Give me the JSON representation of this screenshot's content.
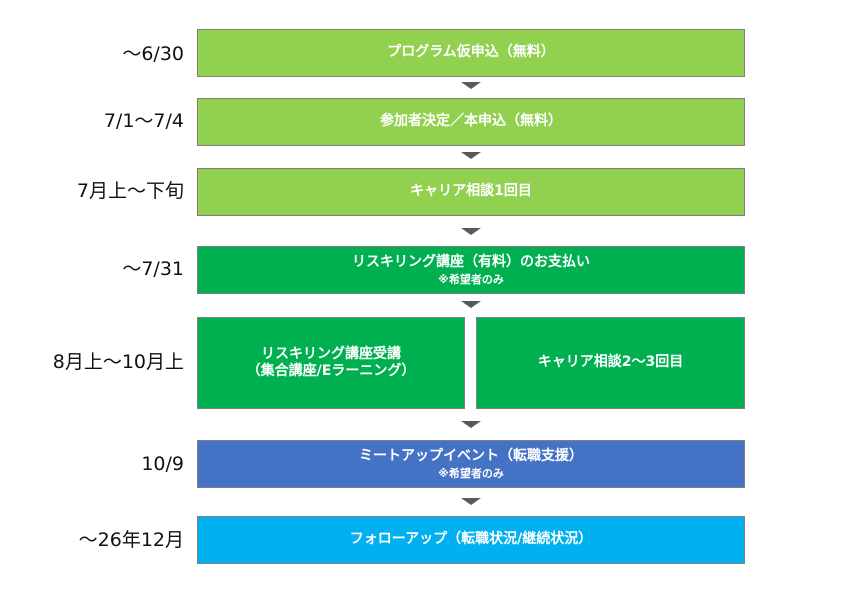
{
  "steps": [
    {
      "date": "～6/30",
      "label": "プログラム仮申込（無料）"
    },
    {
      "date": "7/1～7/4",
      "label": "参加者決定／本申込（無料）"
    },
    {
      "date": "7月上～下旬",
      "label": "キャリア相談1回目"
    },
    {
      "date": "～7/31",
      "label": "リスキリング講座（有料）のお支払い",
      "note": "※希望者のみ"
    },
    {
      "date": "8月上～10月上",
      "left_line1": "リスキリング講座受講",
      "left_line2": "（集合講座/Eラーニング）",
      "right_label": "キャリア相談2～3回目"
    },
    {
      "date": "10/9",
      "label": "ミートアップイベント（転職支援）",
      "note": "※希望者のみ"
    },
    {
      "date": "～26年12月",
      "label": "フォローアップ（転職状況/継続状況）"
    }
  ],
  "colors": {
    "light_green": "#92d050",
    "dark_green": "#00b050",
    "blue": "#4472c4",
    "cyan": "#00b0f0",
    "arrow": "#595959"
  }
}
